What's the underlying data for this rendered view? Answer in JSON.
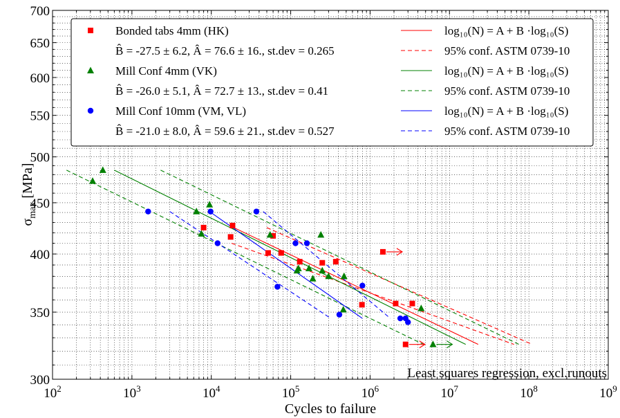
{
  "chart_data": {
    "type": "scatter",
    "xlabel": "Cycles to failure",
    "ylabel_main": "σ",
    "ylabel_sub": "max",
    "ylabel_unit": " [MPa]",
    "x_scale": "log",
    "y_scale": "log",
    "xlim": [
      100,
      1000000000
    ],
    "ylim": [
      300,
      700
    ],
    "grid": true,
    "legend_placement": "top",
    "x_ticks": [
      {
        "value": 100,
        "mant": "10",
        "exp": "2"
      },
      {
        "value": 1000,
        "mant": "10",
        "exp": "3"
      },
      {
        "value": 10000,
        "mant": "10",
        "exp": "4"
      },
      {
        "value": 100000,
        "mant": "10",
        "exp": "5"
      },
      {
        "value": 1000000,
        "mant": "10",
        "exp": "6"
      },
      {
        "value": 10000000,
        "mant": "10",
        "exp": "7"
      },
      {
        "value": 100000000,
        "mant": "10",
        "exp": "8"
      },
      {
        "value": 1000000000,
        "mant": "10",
        "exp": "9"
      }
    ],
    "y_ticks": [
      {
        "value": 300,
        "label": "300"
      },
      {
        "value": 350,
        "label": "350"
      },
      {
        "value": 400,
        "label": "400"
      },
      {
        "value": 450,
        "label": "450"
      },
      {
        "value": 500,
        "label": "500"
      },
      {
        "value": 550,
        "label": "550"
      },
      {
        "value": 600,
        "label": "600"
      },
      {
        "value": 650,
        "label": "650"
      },
      {
        "value": 700,
        "label": "700"
      }
    ],
    "annotation": "Least squares regression, excl.runouts",
    "series": [
      {
        "name": "Bonded tabs 4mm (HK)",
        "color": "#ff0000",
        "marker": "square",
        "stats": "B̂ = -27.5 ± 6.2, Â = 76.6 ± 16., st.dev = 0.265",
        "points": [
          [
            8000,
            425
          ],
          [
            17500,
            416
          ],
          [
            18500,
            427
          ],
          [
            52000,
            401
          ],
          [
            60000,
            417
          ],
          [
            76000,
            401
          ],
          [
            130000,
            393
          ],
          [
            250000,
            392
          ],
          [
            370000,
            393
          ],
          [
            790000,
            356
          ],
          [
            2100000,
            357
          ],
          [
            3400000,
            357
          ]
        ],
        "runouts": [
          [
            1450000,
            402
          ],
          [
            2800000,
            325
          ]
        ],
        "fit": [
          [
            18000,
            426
          ],
          [
            23000000,
            325
          ]
        ],
        "conf_upper": [
          [
            50000,
            425
          ],
          [
            110000000,
            325
          ]
        ],
        "conf_lower": [
          [
            18000,
            410
          ],
          [
            65000000,
            325
          ]
        ]
      },
      {
        "name": "Mill Conf 4mm (VK)",
        "color": "#008000",
        "marker": "triangle",
        "stats": "B̂ = -26.0 ± 5.1, Â = 72.7 ± 13., st.dev = 0.41",
        "points": [
          [
            320,
            473
          ],
          [
            430,
            485
          ],
          [
            6500,
            441
          ],
          [
            7500,
            419
          ],
          [
            9500,
            448
          ],
          [
            55000,
            418
          ],
          [
            120000,
            385
          ],
          [
            125000,
            387
          ],
          [
            170000,
            387
          ],
          [
            190000,
            378
          ],
          [
            240000,
            418
          ],
          [
            250000,
            385
          ],
          [
            300000,
            380
          ],
          [
            460000,
            352
          ],
          [
            470000,
            380
          ],
          [
            4400000,
            353
          ]
        ],
        "runouts": [
          [
            6200000,
            325
          ]
        ],
        "fit": [
          [
            600,
            485
          ],
          [
            16000000,
            325
          ]
        ],
        "conf_upper": [
          [
            2300,
            485
          ],
          [
            75000000,
            325
          ]
        ],
        "conf_lower": [
          [
            150,
            485
          ],
          [
            4700000,
            325
          ]
        ]
      },
      {
        "name": "Mill Conf 10mm (VM, VL)",
        "color": "#0000ff",
        "marker": "circle",
        "stats": "B̂ = -21.0 ± 8.0, Â = 59.6 ± 21., st.dev = 0.527",
        "points": [
          [
            1600,
            441
          ],
          [
            9800,
            441
          ],
          [
            12000,
            410
          ],
          [
            37000,
            441
          ],
          [
            68000,
            371
          ],
          [
            115000,
            410
          ],
          [
            160000,
            410
          ],
          [
            410000,
            348
          ],
          [
            800000,
            372
          ],
          [
            2400000,
            345
          ],
          [
            2800000,
            345
          ],
          [
            3000000,
            342
          ]
        ],
        "runouts": [],
        "fit": [
          [
            9500,
            441
          ],
          [
            800000,
            345
          ]
        ],
        "conf_upper": [
          [
            45000,
            441
          ],
          [
            1800000,
            345
          ]
        ],
        "conf_lower": [
          [
            3000,
            441
          ],
          [
            320000,
            345
          ]
        ]
      }
    ],
    "legend_right": [
      {
        "kind": "fit",
        "color": "#ff0000",
        "text": "log₁₀(N) = A + B ·log₁₀(S)"
      },
      {
        "kind": "conf",
        "color": "#ff0000",
        "text": "95% conf. ASTM 0739-10"
      },
      {
        "kind": "fit",
        "color": "#008000",
        "text": "log₁₀(N) = A + B ·log₁₀(S)"
      },
      {
        "kind": "conf",
        "color": "#008000",
        "text": "95% conf. ASTM 0739-10"
      },
      {
        "kind": "fit",
        "color": "#0000ff",
        "text": "log₁₀(N) = A + B ·log₁₀(S)"
      },
      {
        "kind": "conf",
        "color": "#0000ff",
        "text": "95% conf. ASTM 0739-10"
      }
    ]
  }
}
